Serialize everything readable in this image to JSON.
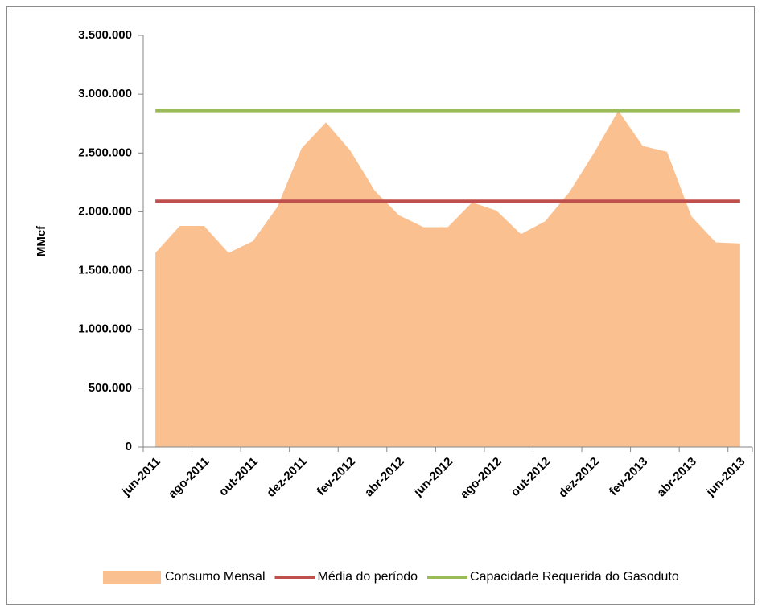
{
  "chart_data": {
    "type": "area",
    "y_label": "MMcf",
    "categories": [
      "jun-2011",
      null,
      "ago-2011",
      null,
      "out-2011",
      null,
      "dez-2011",
      null,
      "fev-2012",
      null,
      "abr-2012",
      null,
      "jun-2012",
      null,
      "ago-2012",
      null,
      "out-2012",
      null,
      "dez-2012",
      null,
      "fev-2013",
      null,
      "abr-2013",
      null,
      "jun-2013"
    ],
    "series": [
      {
        "name": "Consumo Mensal",
        "type": "area",
        "color": "#fac090",
        "values": [
          1650000,
          1880000,
          1880000,
          1650000,
          1750000,
          2040000,
          2540000,
          2760000,
          2520000,
          2180000,
          1970000,
          1870000,
          1870000,
          2080000,
          2010000,
          1810000,
          1920000,
          2170000,
          2500000,
          2860000,
          2560000,
          2510000,
          1960000,
          1740000,
          1730000
        ]
      },
      {
        "name": "Média do período",
        "type": "line",
        "color": "#c0504d",
        "values": [
          2090000,
          2090000,
          2090000,
          2090000,
          2090000,
          2090000,
          2090000,
          2090000,
          2090000,
          2090000,
          2090000,
          2090000,
          2090000,
          2090000,
          2090000,
          2090000,
          2090000,
          2090000,
          2090000,
          2090000,
          2090000,
          2090000,
          2090000,
          2090000,
          2090000
        ]
      },
      {
        "name": "Capacidade Requerida do Gasoduto",
        "type": "line",
        "color": "#9bbb59",
        "values": [
          2860000,
          2860000,
          2860000,
          2860000,
          2860000,
          2860000,
          2860000,
          2860000,
          2860000,
          2860000,
          2860000,
          2860000,
          2860000,
          2860000,
          2860000,
          2860000,
          2860000,
          2860000,
          2860000,
          2860000,
          2860000,
          2860000,
          2860000,
          2860000,
          2860000
        ]
      }
    ],
    "ylim": [
      0,
      3500000
    ],
    "yticks": [
      0,
      {
        "value": 500000,
        "label": "500.000"
      },
      {
        "value": 1000000,
        "label": "1.000.000"
      },
      {
        "value": 1500000,
        "label": "1.500.000"
      },
      {
        "value": 2000000,
        "label": "2.000.000"
      },
      {
        "value": 2500000,
        "label": "2.500.000"
      },
      {
        "value": 3000000,
        "label": "3.000.000"
      },
      {
        "value": 3500000,
        "label": "3.500.000"
      }
    ],
    "grid": false,
    "legend": "bottom"
  }
}
